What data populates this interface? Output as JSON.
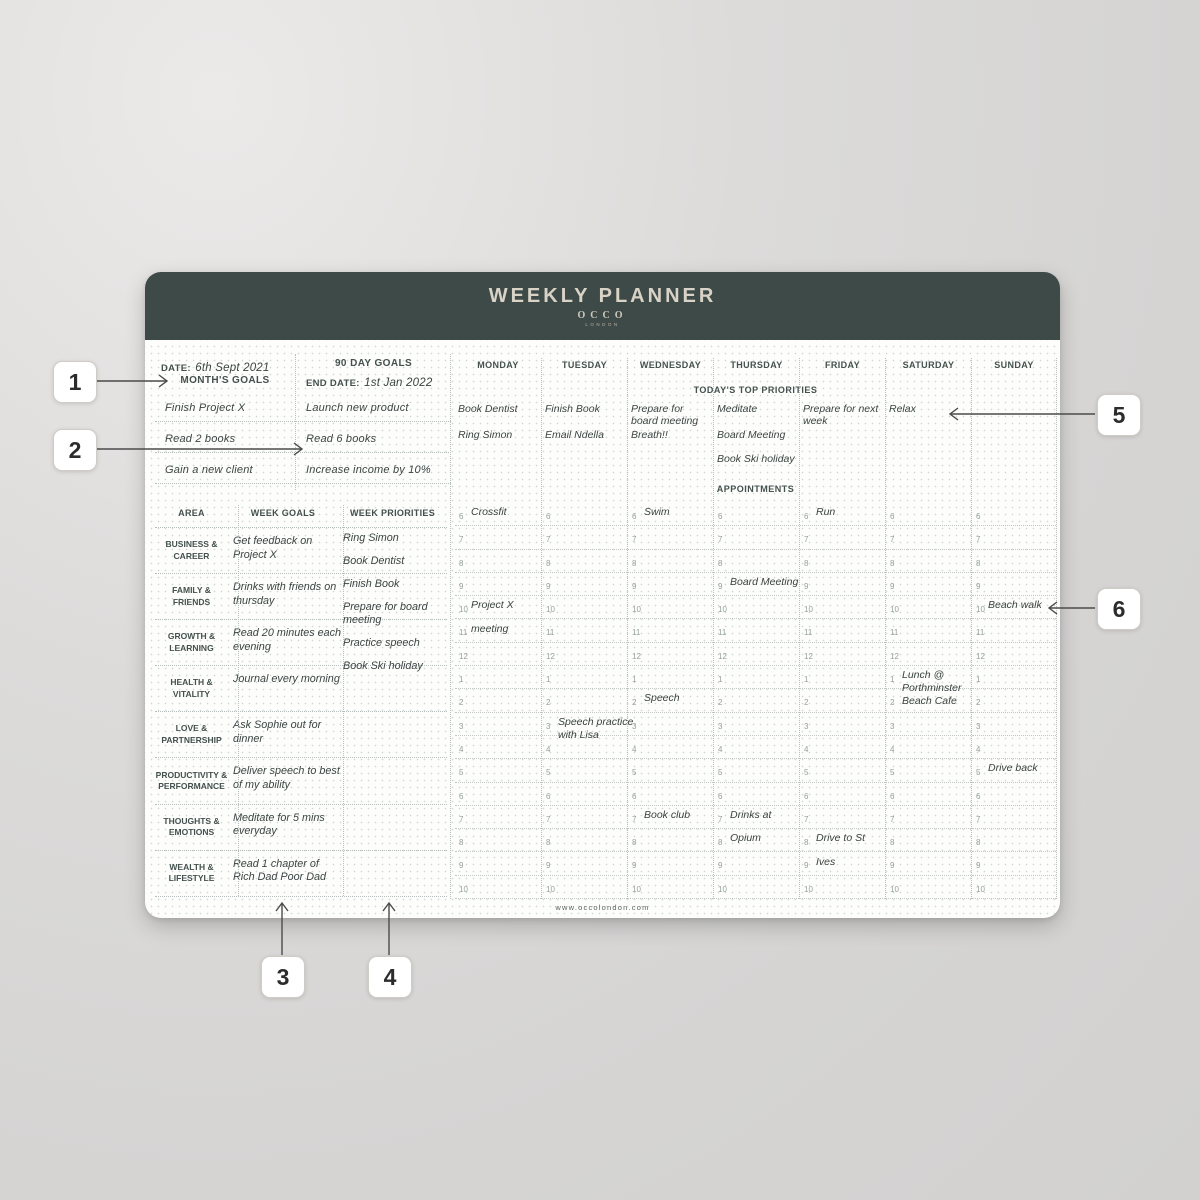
{
  "planner": {
    "title": "WEEKLY PLANNER",
    "brand_name": "OCCO",
    "brand_sub": "LONDON",
    "website": "www.occolondon.com",
    "date_label": "DATE:",
    "date_value": "6th Sept 2021",
    "months_goals_label": "MONTH'S GOALS",
    "months_goals": [
      "Finish Project X",
      "Read 2 books",
      "Gain a new client"
    ],
    "ninety_day_label": "90 DAY GOALS",
    "end_date_label": "END DATE:",
    "end_date_value": "1st Jan 2022",
    "ninety_day_goals": [
      "Launch new product",
      "Read 6 books",
      "Increase income by 10%"
    ],
    "top_priorities_label": "TODAY'S TOP PRIORITIES",
    "appointments_label": "APPOINTMENTS",
    "hours": [
      "6",
      "7",
      "8",
      "9",
      "10",
      "11",
      "12",
      "1",
      "2",
      "3",
      "4",
      "5",
      "6",
      "7",
      "8",
      "9",
      "10"
    ],
    "days": [
      {
        "name": "MONDAY",
        "priorities": [
          "Book Dentist",
          "Ring Simon",
          ""
        ],
        "events": [
          {
            "row": 0,
            "lines": [
              "Crossfit"
            ]
          },
          {
            "row": 4,
            "lines": [
              "Project X"
            ]
          },
          {
            "row": 5,
            "lines": [
              "meeting"
            ]
          }
        ]
      },
      {
        "name": "TUESDAY",
        "priorities": [
          "Finish Book",
          "Email Ndella",
          ""
        ],
        "events": [
          {
            "row": 9,
            "lines": [
              "Speech practice",
              "with Lisa"
            ]
          }
        ]
      },
      {
        "name": "WEDNESDAY",
        "priorities": [
          "Prepare for board meeting",
          "Breath!!",
          ""
        ],
        "events": [
          {
            "row": 0,
            "lines": [
              "Swim"
            ]
          },
          {
            "row": 8,
            "lines": [
              "Speech"
            ]
          },
          {
            "row": 13,
            "lines": [
              "Book club"
            ]
          }
        ]
      },
      {
        "name": "THURSDAY",
        "priorities": [
          "Meditate",
          "Board Meeting",
          "Book Ski holiday"
        ],
        "events": [
          {
            "row": 3,
            "lines": [
              "Board Meeting"
            ]
          },
          {
            "row": 13,
            "lines": [
              "Drinks at"
            ]
          },
          {
            "row": 14,
            "lines": [
              "Opium"
            ]
          }
        ]
      },
      {
        "name": "FRIDAY",
        "priorities": [
          "Prepare for next week",
          "",
          ""
        ],
        "events": [
          {
            "row": 0,
            "lines": [
              "Run"
            ]
          },
          {
            "row": 14,
            "lines": [
              "Drive to St"
            ]
          },
          {
            "row": 15,
            "lines": [
              "Ives"
            ]
          }
        ]
      },
      {
        "name": "SATURDAY",
        "priorities": [
          "Relax",
          "",
          ""
        ],
        "events": [
          {
            "row": 7,
            "lines": [
              "Lunch @",
              "Porthminster",
              "Beach Cafe"
            ]
          }
        ]
      },
      {
        "name": "SUNDAY",
        "priorities": [
          "",
          "",
          ""
        ],
        "events": [
          {
            "row": 4,
            "lines": [
              "Beach walk"
            ]
          },
          {
            "row": 11,
            "lines": [
              "Drive back"
            ]
          }
        ]
      }
    ],
    "week_table": {
      "headers": [
        "AREA",
        "WEEK GOALS",
        "WEEK PRIORITIES"
      ],
      "rows": [
        {
          "area": "BUSINESS & CAREER",
          "goal": "Get feedback on Project X"
        },
        {
          "area": "FAMILY & FRIENDS",
          "goal": "Drinks with friends on thursday"
        },
        {
          "area": "GROWTH & LEARNING",
          "goal": "Read 20 minutes each evening"
        },
        {
          "area": "HEALTH & VITALITY",
          "goal": "Journal every morning"
        },
        {
          "area": "LOVE & PARTNERSHIP",
          "goal": "Ask Sophie out for dinner"
        },
        {
          "area": "PRODUCTIVITY & PERFORMANCE",
          "goal": "Deliver speech to best of my ability"
        },
        {
          "area": "THOUGHTS & EMOTIONS",
          "goal": "Meditate for 5 mins everyday"
        },
        {
          "area": "WEALTH & LIFESTYLE",
          "goal": "Read 1 chapter of Rich Dad Poor Dad"
        }
      ],
      "priorities": [
        "Ring Simon",
        "Book Dentist",
        "Finish Book",
        "Prepare for board meeting",
        "Practice speech",
        "Book Ski holiday"
      ]
    },
    "colors": {
      "header_bg": "#3e4a48",
      "header_text": "#d9d3c7",
      "label_text": "#44514e",
      "handwriting": "#3b4543",
      "hour_text": "#95a09d"
    }
  },
  "callouts": [
    {
      "label": "1"
    },
    {
      "label": "2"
    },
    {
      "label": "3"
    },
    {
      "label": "4"
    },
    {
      "label": "5"
    },
    {
      "label": "6"
    }
  ]
}
